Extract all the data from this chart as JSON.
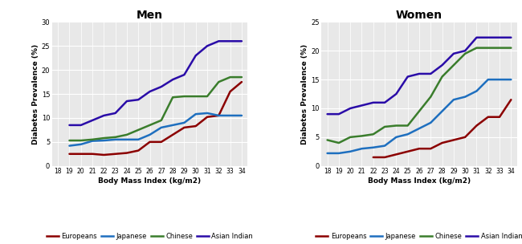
{
  "bmi_x": [
    18,
    19,
    20,
    21,
    22,
    23,
    24,
    25,
    26,
    27,
    28,
    29,
    30,
    31,
    32,
    33,
    34
  ],
  "men": {
    "europeans": [
      null,
      2.5,
      2.5,
      2.5,
      2.3,
      2.5,
      2.7,
      3.2,
      5.0,
      5.0,
      6.5,
      8.0,
      8.3,
      10.2,
      10.5,
      15.5,
      17.5
    ],
    "japanese": [
      null,
      4.2,
      4.5,
      5.2,
      5.3,
      5.5,
      5.5,
      5.5,
      6.5,
      8.0,
      8.5,
      9.0,
      10.8,
      11.0,
      10.5,
      10.5,
      10.5
    ],
    "chinese": [
      null,
      5.3,
      5.3,
      5.5,
      5.8,
      6.0,
      6.5,
      7.5,
      8.5,
      9.5,
      14.3,
      14.5,
      14.5,
      14.5,
      17.5,
      18.5,
      18.5
    ],
    "asian_indian": [
      null,
      8.5,
      8.5,
      9.5,
      10.5,
      11.0,
      13.5,
      13.8,
      15.5,
      16.5,
      18.0,
      19.0,
      23.0,
      25.0,
      26.0,
      26.0,
      26.0
    ]
  },
  "women": {
    "europeans": [
      null,
      null,
      null,
      null,
      1.5,
      1.5,
      2.0,
      2.5,
      3.0,
      3.0,
      4.0,
      4.5,
      5.0,
      7.0,
      8.5,
      8.5,
      11.5
    ],
    "japanese": [
      2.2,
      2.2,
      2.5,
      3.0,
      3.2,
      3.5,
      5.0,
      5.5,
      6.5,
      7.5,
      9.5,
      11.5,
      12.0,
      13.0,
      15.0,
      15.0,
      15.0
    ],
    "chinese": [
      4.5,
      4.0,
      5.0,
      5.2,
      5.5,
      6.8,
      7.0,
      7.0,
      9.5,
      12.0,
      15.5,
      17.5,
      19.5,
      20.5,
      20.5,
      20.5,
      20.5
    ],
    "asian_indian": [
      9.0,
      9.0,
      10.0,
      10.5,
      11.0,
      11.0,
      12.5,
      15.5,
      16.0,
      16.0,
      17.5,
      19.5,
      20.0,
      22.3,
      22.3,
      22.3,
      22.3
    ]
  },
  "colors": {
    "europeans": "#8B0000",
    "japanese": "#1E6FBF",
    "chinese": "#3A7D2C",
    "asian_indian": "#2A0CA8"
  },
  "labels": {
    "europeans": "Europeans",
    "japanese": "Japanese",
    "chinese": "Chinese",
    "asian_indian": "Asian Indian"
  },
  "men_ylim": [
    0,
    30
  ],
  "women_ylim": [
    0,
    25
  ],
  "men_yticks": [
    0,
    5,
    10,
    15,
    20,
    25,
    30
  ],
  "women_yticks": [
    0,
    5,
    10,
    15,
    20,
    25
  ],
  "xlabel": "Body Mass Index (kg/m2)",
  "ylabel": "Diabetes Prevalence (%)",
  "title_men": "Men",
  "title_women": "Women",
  "bg_color": "#e8e8e8",
  "linewidth": 1.8
}
